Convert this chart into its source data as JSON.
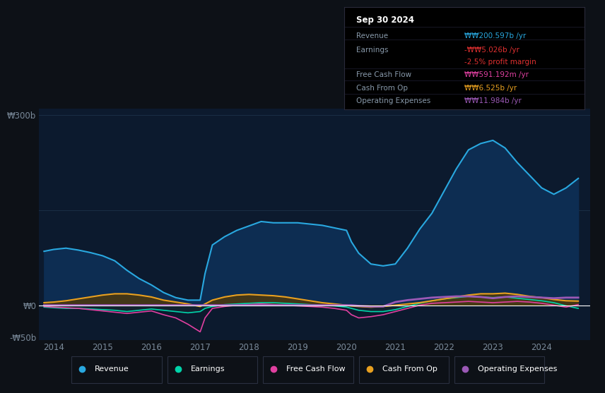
{
  "background_color": "#0d1117",
  "plot_bg_color": "#0c1a2e",
  "grid_color": "#1a2e45",
  "zero_line_color": "#ffffff",
  "ylabel_300": "₩300b",
  "ylabel_0": "₩0",
  "ylabel_neg50": "-₩50b",
  "revenue_color": "#29a8e0",
  "earnings_color": "#00d4aa",
  "fcf_color": "#e040a0",
  "cashop_color": "#e8a020",
  "opex_color": "#9b59b6",
  "revenue_fill": "#0d2d52",
  "tooltip_bg": "#000000",
  "tooltip_border": "#2a2a3a",
  "tooltip_title": "Sep 30 2024",
  "tooltip_revenue_label": "Revenue",
  "tooltip_revenue_val": "₩₩200.597b /yr",
  "tooltip_revenue_color": "#29a8e0",
  "tooltip_earnings_label": "Earnings",
  "tooltip_earnings_val": "-₩₩5.026b /yr",
  "tooltip_earnings_color": "#e03030",
  "tooltip_margin_val": "-2.5% profit margin",
  "tooltip_margin_color": "#e03030",
  "tooltip_fcf_label": "Free Cash Flow",
  "tooltip_fcf_val": "₩₩591.192m /yr",
  "tooltip_fcf_color": "#e040a0",
  "tooltip_cashop_label": "Cash From Op",
  "tooltip_cashop_val": "₩₩6.525b /yr",
  "tooltip_cashop_color": "#e8a020",
  "tooltip_opex_label": "Operating Expenses",
  "tooltip_opex_val": "₩₩11.984b /yr",
  "tooltip_opex_color": "#9b59b6",
  "legend_labels": [
    "Revenue",
    "Earnings",
    "Free Cash Flow",
    "Cash From Op",
    "Operating Expenses"
  ],
  "legend_colors": [
    "#29a8e0",
    "#00d4aa",
    "#e040a0",
    "#e8a020",
    "#9b59b6"
  ]
}
